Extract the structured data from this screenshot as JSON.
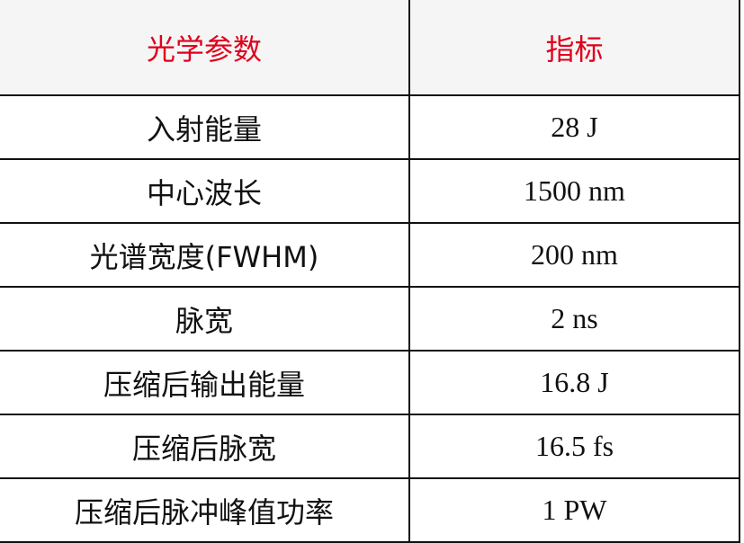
{
  "header": {
    "param": "光学参数",
    "spec": "指标"
  },
  "rows": [
    {
      "param": "入射能量",
      "value": "28 J"
    },
    {
      "param": "中心波长",
      "value": "1500 nm"
    },
    {
      "param": "光谱宽度(FWHM)",
      "value": "200 nm"
    },
    {
      "param": "脉宽",
      "value": "2 ns"
    },
    {
      "param": "压缩后输出能量",
      "value": "16.8 J"
    },
    {
      "param": "压缩后脉宽",
      "value": "16.5 fs"
    },
    {
      "param": "压缩后脉冲峰值功率",
      "value": "1 PW"
    }
  ],
  "colors": {
    "header_text": "#e0001b",
    "header_bg": "#f5f5f5"
  }
}
